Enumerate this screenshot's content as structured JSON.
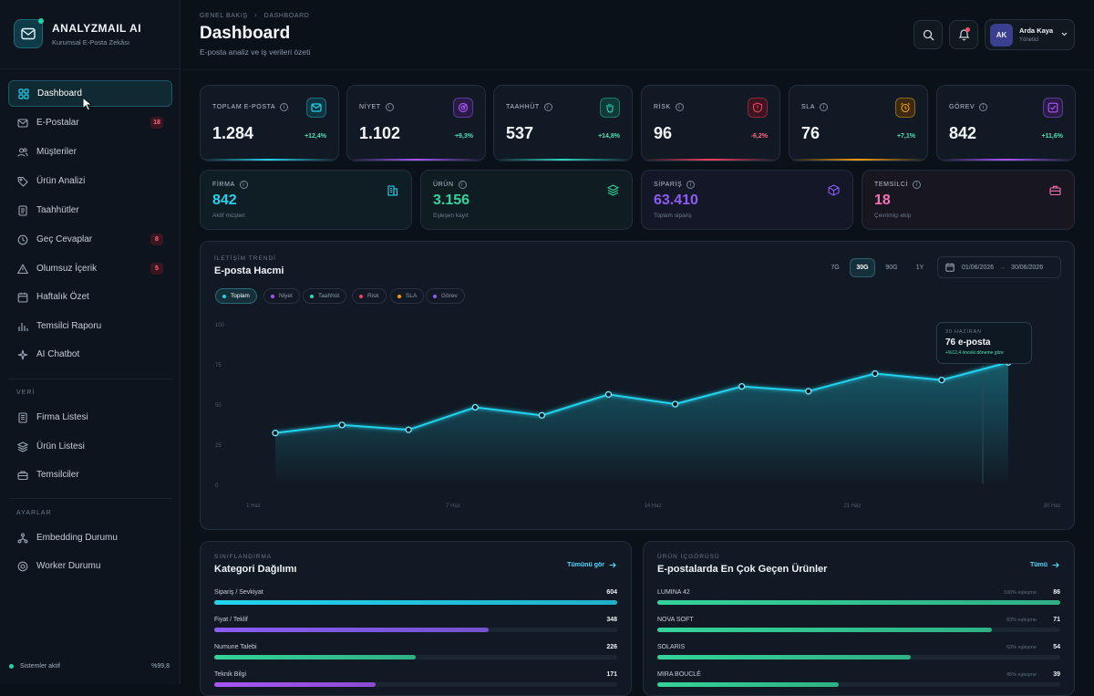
{
  "brand": {
    "name": "ANALYZMAIL AI",
    "subtitle": "Kurumsal E-Posta Zekâsı"
  },
  "sidebar": {
    "items": [
      {
        "label": "Dashboard",
        "icon": "grid-icon",
        "active": true
      },
      {
        "label": "E-Postalar",
        "icon": "mail-icon",
        "badge": "18"
      },
      {
        "label": "Müşteriler",
        "icon": "users-icon"
      },
      {
        "label": "Ürün Analizi",
        "icon": "tag-icon"
      },
      {
        "label": "Taahhütler",
        "icon": "document-icon"
      },
      {
        "label": "Geç Cevaplar",
        "icon": "clock-icon",
        "badge": "8"
      },
      {
        "label": "Olumsuz İçerik",
        "icon": "warning-icon",
        "badge": "5"
      },
      {
        "label": "Haftalık Özet",
        "icon": "calendar-icon"
      },
      {
        "label": "Temsilci Raporu",
        "icon": "bar-chart-icon"
      },
      {
        "label": "AI Chatbot",
        "icon": "sparkle-icon"
      }
    ],
    "section_data": "VERİ",
    "data_items": [
      {
        "label": "Firma Listesi",
        "icon": "building-list-icon"
      },
      {
        "label": "Ürün Listesi",
        "icon": "layers-icon"
      },
      {
        "label": "Temsilciler",
        "icon": "briefcase-icon"
      }
    ],
    "section_settings": "AYARLAR",
    "settings_items": [
      {
        "label": "Embedding Durumu",
        "icon": "network-icon"
      },
      {
        "label": "Worker Durumu",
        "icon": "target-icon"
      }
    ],
    "status": {
      "text": "Sistemler aktif",
      "value": "%99,8"
    }
  },
  "header": {
    "breadcrumb": {
      "root": "GENEL BAKIŞ",
      "current": "DASHBOARD"
    },
    "title": "Dashboard",
    "subtitle": "E-posta analiz ve iş verileri özeti",
    "user": {
      "initials": "AK",
      "name": "Arda Kaya",
      "role": "Yönetici"
    }
  },
  "kpis": [
    {
      "label": "TOPLAM E-POSTA",
      "value": "1.284",
      "delta": "+12,4%",
      "icon": "mail-icon",
      "color": "#22d3ee",
      "delta_color": "#4ee0b4"
    },
    {
      "label": "NİYET",
      "value": "1.102",
      "delta": "+9,3%",
      "icon": "target-icon",
      "color": "#a855f7",
      "delta_color": "#4ee0b4"
    },
    {
      "label": "TAAHHÜT",
      "value": "537",
      "delta": "+14,8%",
      "icon": "hand-icon",
      "color": "#2dd4bf",
      "delta_color": "#4ee0b4"
    },
    {
      "label": "RİSK",
      "value": "96",
      "delta": "-6,2%",
      "icon": "shield-alert-icon",
      "color": "#f43f5e",
      "delta_color": "#ff6b7f"
    },
    {
      "label": "SLA",
      "value": "76",
      "delta": "+7,1%",
      "icon": "alarm-icon",
      "color": "#f59e0b",
      "delta_color": "#4ee0b4"
    },
    {
      "label": "GÖREV",
      "value": "842",
      "delta": "+11,6%",
      "icon": "check-square-icon",
      "color": "#a855f7",
      "delta_color": "#4ee0b4"
    }
  ],
  "stats": [
    {
      "label": "FİRMA",
      "value": "842",
      "sub": "Aktif müşteri",
      "icon": "building-icon",
      "color": "#22d3ee"
    },
    {
      "label": "ÜRÜN",
      "value": "3.156",
      "sub": "Eşleşen kayıt",
      "icon": "layers-icon",
      "color": "#34d399"
    },
    {
      "label": "SİPARİŞ",
      "value": "63.410",
      "sub": "Toplam sipariş",
      "icon": "box-icon",
      "color": "#8b5cf6"
    },
    {
      "label": "TEMSİLCİ",
      "value": "18",
      "sub": "Çevrimiçi ekip",
      "icon": "briefcase-icon",
      "color": "#f472b6"
    }
  ],
  "trend": {
    "kicker": "İLETİŞİM TRENDİ",
    "title": "E-posta Hacmi",
    "ranges": [
      "7G",
      "30G",
      "90G",
      "1Y"
    ],
    "active_range": "30G",
    "date_from": "01/06/2026",
    "date_to": "30/06/2026",
    "chips": [
      {
        "label": "Toplam",
        "color": "#22d3ee",
        "active": true
      },
      {
        "label": "Niyet",
        "color": "#a855f7"
      },
      {
        "label": "Taahhüt",
        "color": "#2dd4bf"
      },
      {
        "label": "Risk",
        "color": "#f43f5e"
      },
      {
        "label": "SLA",
        "color": "#f59e0b"
      },
      {
        "label": "Görev",
        "color": "#8b5cf6"
      }
    ],
    "tooltip": {
      "date": "30 HAZİRAN",
      "value": "76 e-posta",
      "sub": "+%12,4 önceki döneme göre"
    }
  },
  "chart_data": {
    "type": "area",
    "title": "E-posta Hacmi",
    "xlabel": "",
    "ylabel": "",
    "x_ticks": [
      "1 Haz",
      "7 Haz",
      "14 Haz",
      "21 Haz",
      "30 Haz"
    ],
    "y_ticks": [
      "0",
      "25",
      "50",
      "75",
      "100"
    ],
    "ylim": [
      0,
      100
    ],
    "grid": false,
    "series": [
      {
        "values": [
          32,
          37,
          34,
          48,
          43,
          56,
          50,
          61,
          58,
          69,
          65,
          76
        ]
      }
    ]
  },
  "categories": {
    "kicker": "SINIFLANDIRMA",
    "title": "Kategori Dağılımı",
    "link": "Tümünü gör",
    "rows": [
      {
        "label": "Sipariş / Sevkiyat",
        "value": "604",
        "fraction": 1.0,
        "color": "#22d3ee"
      },
      {
        "label": "Fiyat / Teklif",
        "value": "348",
        "fraction": 0.68,
        "color": "#8b5cf6"
      },
      {
        "label": "Numune Talebi",
        "value": "226",
        "fraction": 0.5,
        "color": "#34d399"
      },
      {
        "label": "Teknik Bilgi",
        "value": "171",
        "fraction": 0.4,
        "color": "#a855f7"
      }
    ]
  },
  "products": {
    "kicker": "ÜRÜN İÇGÖRÜSÜ",
    "title": "E-postalarda En Çok Geçen Ürünler",
    "link": "Tümü",
    "rows": [
      {
        "label": "LUMINA 42",
        "share": "100% eşleşme",
        "value": "86",
        "fraction": 1.0,
        "color": "#34d399"
      },
      {
        "label": "NOVA SOFT",
        "share": "83% eşleşme",
        "value": "71",
        "fraction": 0.83,
        "color": "#34d399"
      },
      {
        "label": "SOLARIS",
        "share": "63% eşleşme",
        "value": "54",
        "fraction": 0.63,
        "color": "#34d399"
      },
      {
        "label": "MIRA BOUCLÉ",
        "share": "45% eşleşme",
        "value": "39",
        "fraction": 0.45,
        "color": "#34d399"
      }
    ]
  }
}
